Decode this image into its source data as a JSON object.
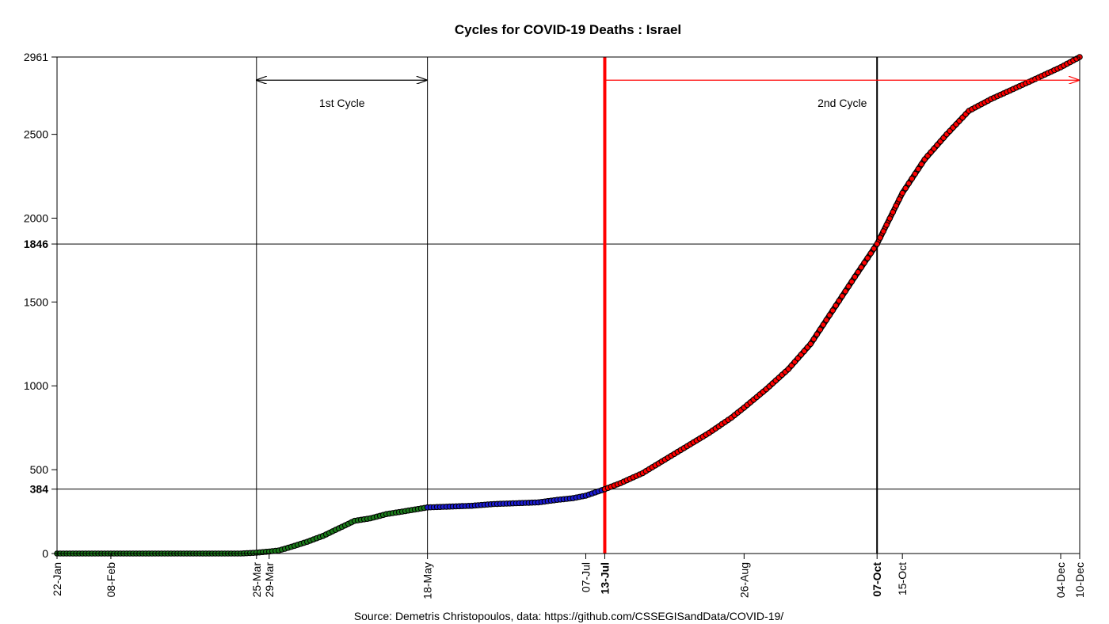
{
  "chart_data": {
    "type": "line",
    "title": "Cycles for COVID-19 Deaths : Israel",
    "source": "Source: Demetris Christopoulos, data: https://github.com/CSSEGISandData/COVID-19/",
    "x_unit": "date (2020)",
    "xlim": [
      "2020-01-22",
      "2020-12-10"
    ],
    "ylim": [
      0,
      2961
    ],
    "grid": false,
    "y_ticks": [
      {
        "value": 0,
        "label": "0",
        "bold": false
      },
      {
        "value": 384,
        "label": "384",
        "bold": true
      },
      {
        "value": 500,
        "label": "500",
        "bold": false
      },
      {
        "value": 1000,
        "label": "1000",
        "bold": false
      },
      {
        "value": 1500,
        "label": "1500",
        "bold": false
      },
      {
        "value": 1846,
        "label": "1846",
        "bold": true
      },
      {
        "value": 2000,
        "label": "2000",
        "bold": false
      },
      {
        "value": 2500,
        "label": "2500",
        "bold": false
      },
      {
        "value": 2961,
        "label": "2961",
        "bold": false
      }
    ],
    "x_ticks": [
      {
        "date": "2020-01-22",
        "label": "22-Jan",
        "bold": false
      },
      {
        "date": "2020-02-08",
        "label": "08-Feb",
        "bold": false
      },
      {
        "date": "2020-03-25",
        "label": "25-Mar",
        "bold": false
      },
      {
        "date": "2020-03-29",
        "label": "29-Mar",
        "bold": false
      },
      {
        "date": "2020-05-18",
        "label": "18-May",
        "bold": false
      },
      {
        "date": "2020-07-07",
        "label": "07-Jul",
        "bold": false
      },
      {
        "date": "2020-07-13",
        "label": "13-Jul",
        "bold": true
      },
      {
        "date": "2020-08-26",
        "label": "26-Aug",
        "bold": false
      },
      {
        "date": "2020-10-07",
        "label": "07-Oct",
        "bold": true
      },
      {
        "date": "2020-10-15",
        "label": "15-Oct",
        "bold": false
      },
      {
        "date": "2020-12-04",
        "label": "04-Dec",
        "bold": false
      },
      {
        "date": "2020-12-10",
        "label": "10-Dec",
        "bold": false
      }
    ],
    "vertical_lines": [
      {
        "date": "2020-03-25",
        "color": "#000000",
        "width": "thin"
      },
      {
        "date": "2020-05-18",
        "color": "#000000",
        "width": "thin"
      },
      {
        "date": "2020-07-13",
        "color": "#ff0000",
        "width": "thick"
      },
      {
        "date": "2020-10-07",
        "color": "#000000",
        "width": "medium"
      }
    ],
    "horizontal_lines": [
      384,
      1846
    ],
    "cycles": [
      {
        "label": "1st Cycle",
        "start": "2020-03-25",
        "end": "2020-05-18",
        "color": "#000000",
        "arrow_y": 2823,
        "double_headed": true
      },
      {
        "label": "2nd Cycle",
        "start": "2020-07-13",
        "end": "2020-12-10",
        "color": "#ff0000",
        "arrow_y": 2823,
        "double_headed": false
      }
    ],
    "series": [
      {
        "color": "#1a7a1a",
        "values": [
          [
            "2020-01-22",
            0
          ],
          [
            "2020-03-20",
            0
          ],
          [
            "2020-03-25",
            5
          ],
          [
            "2020-03-29",
            12
          ],
          [
            "2020-04-01",
            18
          ],
          [
            "2020-04-05",
            40
          ],
          [
            "2020-04-10",
            70
          ],
          [
            "2020-04-15",
            105
          ],
          [
            "2020-04-20",
            150
          ],
          [
            "2020-04-25",
            195
          ],
          [
            "2020-04-30",
            210
          ],
          [
            "2020-05-05",
            235
          ],
          [
            "2020-05-10",
            250
          ],
          [
            "2020-05-18",
            275
          ]
        ]
      },
      {
        "color": "#1a1ad0",
        "values": [
          [
            "2020-05-18",
            275
          ],
          [
            "2020-05-25",
            280
          ],
          [
            "2020-06-01",
            285
          ],
          [
            "2020-06-08",
            295
          ],
          [
            "2020-06-15",
            300
          ],
          [
            "2020-06-22",
            305
          ],
          [
            "2020-06-28",
            320
          ],
          [
            "2020-07-03",
            330
          ],
          [
            "2020-07-07",
            345
          ],
          [
            "2020-07-13",
            384
          ]
        ]
      },
      {
        "color": "#ff0000",
        "values": [
          [
            "2020-07-13",
            384
          ],
          [
            "2020-07-18",
            420
          ],
          [
            "2020-07-25",
            480
          ],
          [
            "2020-08-01",
            560
          ],
          [
            "2020-08-08",
            640
          ],
          [
            "2020-08-15",
            720
          ],
          [
            "2020-08-22",
            810
          ],
          [
            "2020-08-26",
            870
          ],
          [
            "2020-09-02",
            980
          ],
          [
            "2020-09-09",
            1100
          ],
          [
            "2020-09-16",
            1250
          ],
          [
            "2020-09-23",
            1450
          ],
          [
            "2020-09-30",
            1650
          ],
          [
            "2020-10-07",
            1846
          ],
          [
            "2020-10-15",
            2150
          ],
          [
            "2020-10-22",
            2350
          ],
          [
            "2020-10-29",
            2500
          ],
          [
            "2020-11-05",
            2640
          ],
          [
            "2020-11-12",
            2710
          ],
          [
            "2020-11-19",
            2770
          ],
          [
            "2020-11-26",
            2830
          ],
          [
            "2020-12-04",
            2900
          ],
          [
            "2020-12-10",
            2961
          ]
        ]
      }
    ]
  }
}
